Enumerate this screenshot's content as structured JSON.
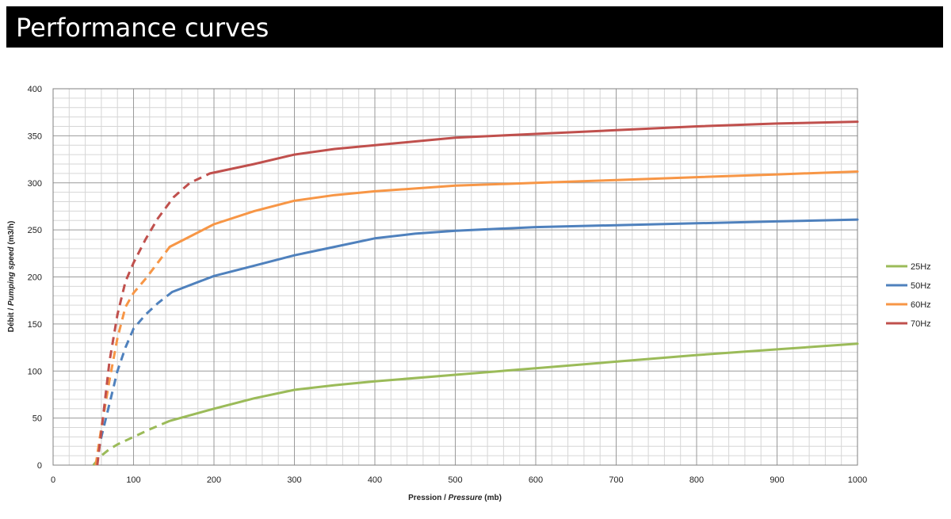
{
  "header": {
    "title": "Performance curves"
  },
  "chart_data": {
    "type": "line",
    "xlabel": {
      "normal": "Pression / ",
      "italic": "Pressure",
      "unit": " (mb)"
    },
    "ylabel": {
      "normal": "Débit / ",
      "italic": "Pumping speed",
      "unit": " (m3/h)"
    },
    "xlim": [
      0,
      1000
    ],
    "ylim": [
      0,
      400
    ],
    "xticks": [
      0,
      100,
      200,
      300,
      400,
      500,
      600,
      700,
      800,
      900,
      1000
    ],
    "yticks": [
      0,
      50,
      100,
      150,
      200,
      250,
      300,
      350,
      400
    ],
    "grid": true,
    "legend": "right",
    "series": [
      {
        "name": "25Hz",
        "color": "#9bbb59",
        "dashed": [
          [
            50,
            0
          ],
          [
            60,
            10
          ],
          [
            70,
            17
          ],
          [
            80,
            22
          ],
          [
            100,
            30
          ],
          [
            120,
            38
          ],
          [
            145,
            47
          ]
        ],
        "solid": [
          [
            145,
            47
          ],
          [
            200,
            60
          ],
          [
            250,
            71
          ],
          [
            300,
            80
          ],
          [
            350,
            85
          ],
          [
            400,
            89
          ],
          [
            500,
            96
          ],
          [
            600,
            103
          ],
          [
            700,
            110
          ],
          [
            800,
            117
          ],
          [
            900,
            123
          ],
          [
            1000,
            129
          ]
        ]
      },
      {
        "name": "50Hz",
        "color": "#4f81bd",
        "dashed": [
          [
            53,
            0
          ],
          [
            60,
            30
          ],
          [
            70,
            65
          ],
          [
            80,
            100
          ],
          [
            90,
            125
          ],
          [
            100,
            145
          ],
          [
            115,
            160
          ],
          [
            130,
            172
          ],
          [
            148,
            184
          ]
        ],
        "solid": [
          [
            148,
            184
          ],
          [
            200,
            201
          ],
          [
            250,
            212
          ],
          [
            300,
            223
          ],
          [
            350,
            232
          ],
          [
            400,
            241
          ],
          [
            450,
            246
          ],
          [
            500,
            249
          ],
          [
            550,
            251
          ],
          [
            600,
            253
          ],
          [
            700,
            255
          ],
          [
            800,
            257
          ],
          [
            900,
            259
          ],
          [
            1000,
            261
          ]
        ]
      },
      {
        "name": "60Hz",
        "color": "#f79646",
        "dashed": [
          [
            53,
            0
          ],
          [
            60,
            40
          ],
          [
            70,
            90
          ],
          [
            80,
            135
          ],
          [
            90,
            168
          ],
          [
            100,
            183
          ],
          [
            115,
            198
          ],
          [
            130,
            215
          ],
          [
            145,
            232
          ]
        ],
        "solid": [
          [
            145,
            232
          ],
          [
            200,
            256
          ],
          [
            250,
            270
          ],
          [
            300,
            281
          ],
          [
            350,
            287
          ],
          [
            400,
            291
          ],
          [
            450,
            294
          ],
          [
            500,
            297
          ],
          [
            600,
            300
          ],
          [
            700,
            303
          ],
          [
            800,
            306
          ],
          [
            900,
            309
          ],
          [
            1000,
            312
          ]
        ]
      },
      {
        "name": "70Hz",
        "color": "#c0504d",
        "dashed": [
          [
            55,
            0
          ],
          [
            62,
            50
          ],
          [
            70,
            110
          ],
          [
            80,
            160
          ],
          [
            90,
            195
          ],
          [
            100,
            215
          ],
          [
            115,
            240
          ],
          [
            130,
            262
          ],
          [
            150,
            285
          ],
          [
            170,
            300
          ],
          [
            195,
            310
          ]
        ],
        "solid": [
          [
            195,
            310
          ],
          [
            250,
            320
          ],
          [
            300,
            330
          ],
          [
            350,
            336
          ],
          [
            400,
            340
          ],
          [
            450,
            344
          ],
          [
            500,
            348
          ],
          [
            600,
            352
          ],
          [
            700,
            356
          ],
          [
            800,
            360
          ],
          [
            900,
            363
          ],
          [
            1000,
            365
          ]
        ]
      }
    ]
  }
}
